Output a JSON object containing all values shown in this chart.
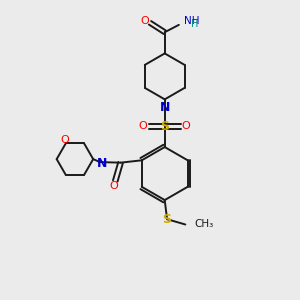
{
  "background_color": "#ebebeb",
  "bond_color": "#1a1a1a",
  "figsize": [
    3.0,
    3.0
  ],
  "dpi": 100,
  "atom_colors": {
    "O": "#ff0000",
    "N": "#0000cc",
    "S": "#ccaa00",
    "C": "#1a1a1a",
    "H": "#008888"
  }
}
